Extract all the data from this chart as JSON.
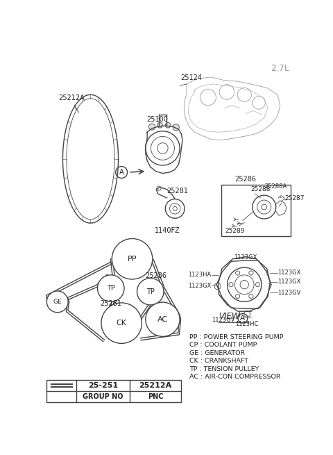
{
  "title": "2.7L",
  "background_color": "#ffffff",
  "legend_entries": [
    "PP : POWER STEERING PUMP",
    "CP : COOLANT PUMP",
    "GE : GENERATOR",
    "CK : CRANKSHAFT",
    "TP : TENSION PULLEY",
    "AC : AIR-CON COMPRESSOR"
  ],
  "table_headers": [
    "",
    "GROUP NO",
    "PNC"
  ],
  "table_row": [
    "25-251",
    "25212A"
  ]
}
